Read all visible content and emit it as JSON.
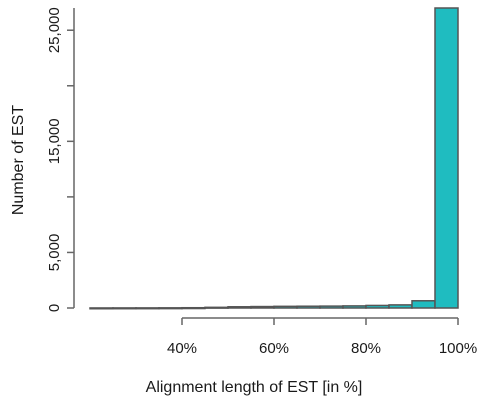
{
  "chart_data": {
    "type": "bar",
    "title": "",
    "xlabel": "Alignment length of EST [in %]",
    "ylabel": "Number of EST",
    "bar_color": "#1fbcc0",
    "bar_edge_color": "#555555",
    "grid": false,
    "legend": "none",
    "xlim": [
      20,
      100
    ],
    "ylim": [
      0,
      27000
    ],
    "x_axis_range": [
      40,
      100
    ],
    "y_axis_range": [
      0,
      27000
    ],
    "x_ticks": [
      40,
      60,
      80,
      100
    ],
    "x_tick_labels": [
      "40%",
      "60%",
      "80%",
      "100%"
    ],
    "y_ticks": [
      0,
      5000,
      15000,
      25000
    ],
    "y_tick_labels": [
      "0",
      "5,000",
      "15,000",
      "25,000"
    ],
    "y_minor_ticks": [
      10000,
      20000
    ],
    "bins": [
      {
        "x0": 20,
        "x1": 25,
        "value": 5
      },
      {
        "x0": 25,
        "x1": 30,
        "value": 8
      },
      {
        "x0": 30,
        "x1": 35,
        "value": 10
      },
      {
        "x0": 35,
        "x1": 40,
        "value": 15
      },
      {
        "x0": 40,
        "x1": 45,
        "value": 25
      },
      {
        "x0": 45,
        "x1": 50,
        "value": 60
      },
      {
        "x0": 50,
        "x1": 55,
        "value": 110
      },
      {
        "x0": 55,
        "x1": 60,
        "value": 130
      },
      {
        "x0": 60,
        "x1": 65,
        "value": 150
      },
      {
        "x0": 65,
        "x1": 70,
        "value": 160
      },
      {
        "x0": 70,
        "x1": 75,
        "value": 170
      },
      {
        "x0": 75,
        "x1": 80,
        "value": 190
      },
      {
        "x0": 80,
        "x1": 85,
        "value": 230
      },
      {
        "x0": 85,
        "x1": 90,
        "value": 280
      },
      {
        "x0": 90,
        "x1": 95,
        "value": 650
      },
      {
        "x0": 95,
        "x1": 100,
        "value": 27000
      }
    ]
  }
}
